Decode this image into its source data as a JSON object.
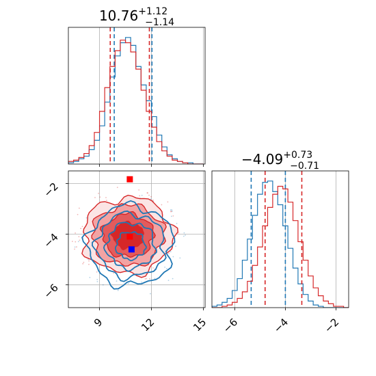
{
  "chart_data": [
    {
      "type": "histogram",
      "panel": "marginal-x",
      "title": {
        "value": "10.76",
        "plus": "+1.12",
        "minus": "−1.14"
      },
      "xlim": [
        7.2,
        15.1
      ],
      "grid": true,
      "series": [
        {
          "color": "#1f77b4",
          "quantiles": [
            9.85,
            12.03
          ],
          "bins": [
            7.2,
            7.5,
            7.8,
            8.1,
            8.4,
            8.7,
            9.0,
            9.3,
            9.6,
            9.9,
            10.2,
            10.5,
            10.8,
            11.1,
            11.4,
            11.7,
            12.0,
            12.3,
            12.6,
            12.9,
            13.2,
            13.5,
            13.8,
            14.1,
            14.4,
            14.7,
            15.0
          ],
          "counts": [
            1,
            2,
            4,
            6,
            11,
            18,
            29,
            47,
            66,
            82,
            92,
            96,
            90,
            74,
            60,
            48,
            36,
            22,
            13,
            7,
            4,
            2,
            1,
            1,
            0,
            0
          ]
        },
        {
          "color": "#d62728",
          "quantiles": [
            9.62,
            11.88
          ],
          "bins": [
            7.2,
            7.5,
            7.8,
            8.1,
            8.4,
            8.7,
            9.0,
            9.3,
            9.6,
            9.9,
            10.2,
            10.5,
            10.8,
            11.1,
            11.4,
            11.7,
            12.0,
            12.3,
            12.6,
            12.9,
            13.2,
            13.5,
            13.8,
            14.1,
            14.4,
            14.7,
            15.0
          ],
          "counts": [
            2,
            3,
            5,
            8,
            14,
            24,
            40,
            58,
            74,
            86,
            94,
            92,
            85,
            72,
            56,
            40,
            28,
            17,
            10,
            6,
            3,
            2,
            1,
            0,
            0,
            0
          ]
        }
      ]
    },
    {
      "type": "histogram",
      "panel": "marginal-y",
      "title": {
        "value": "−4.09",
        "plus": "+0.73",
        "minus": "−0.71"
      },
      "xlim": [
        -6.9,
        -1.5
      ],
      "xticks": [
        -6,
        -4,
        -2
      ],
      "grid": true,
      "series": [
        {
          "color": "#1f77b4",
          "quantiles": [
            -5.35,
            -4.0
          ],
          "bins": [
            -6.9,
            -6.7,
            -6.5,
            -6.3,
            -6.1,
            -5.9,
            -5.7,
            -5.5,
            -5.3,
            -5.1,
            -4.9,
            -4.7,
            -4.5,
            -4.3,
            -4.1,
            -3.9,
            -3.7,
            -3.5,
            -3.3,
            -3.1,
            -2.9,
            -2.7,
            -2.5,
            -2.3,
            -2.1,
            -1.9,
            -1.7,
            -1.5
          ],
          "counts": [
            1,
            2,
            4,
            7,
            13,
            22,
            36,
            52,
            70,
            86,
            95,
            96,
            88,
            78,
            62,
            45,
            30,
            18,
            10,
            5,
            2,
            1,
            0,
            0,
            0,
            0,
            0
          ]
        },
        {
          "color": "#d62728",
          "quantiles": [
            -4.8,
            -3.35
          ],
          "bins": [
            -6.9,
            -6.7,
            -6.5,
            -6.3,
            -6.1,
            -5.9,
            -5.7,
            -5.5,
            -5.3,
            -5.1,
            -4.9,
            -4.7,
            -4.5,
            -4.3,
            -4.1,
            -3.9,
            -3.7,
            -3.5,
            -3.3,
            -3.1,
            -2.9,
            -2.7,
            -2.5,
            -2.3,
            -2.1,
            -1.9,
            -1.7,
            -1.5
          ],
          "counts": [
            0,
            0,
            1,
            2,
            4,
            7,
            12,
            20,
            32,
            46,
            62,
            76,
            86,
            92,
            90,
            80,
            66,
            50,
            36,
            24,
            15,
            9,
            5,
            3,
            1,
            1,
            0
          ]
        }
      ]
    },
    {
      "type": "contour",
      "panel": "joint",
      "xlim": [
        7.2,
        15.1
      ],
      "ylim": [
        -6.9,
        -1.5
      ],
      "xticks": [
        9,
        12,
        15
      ],
      "yticks": [
        -6,
        -4,
        -2
      ],
      "grid": true,
      "series": [
        {
          "color": "#1f77b4",
          "center": [
            10.8,
            -4.45
          ],
          "spread": [
            1.12,
            0.72
          ],
          "marker": {
            "x": 10.85,
            "y": -4.6,
            "color": "#0000ff"
          }
        },
        {
          "color": "#d62728",
          "center": [
            10.65,
            -4.05
          ],
          "spread": [
            1.18,
            0.68
          ],
          "markers": [
            {
              "x": 10.75,
              "y": -1.83,
              "color": "#ff0000"
            },
            {
              "x": 10.75,
              "y": -4.09,
              "color": "#ff0000"
            }
          ]
        }
      ]
    }
  ]
}
